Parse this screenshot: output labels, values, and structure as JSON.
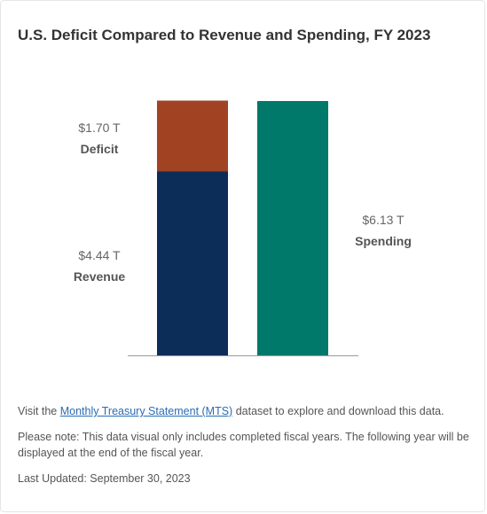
{
  "title": "U.S. Deficit Compared to Revenue and Spending, FY 2023",
  "chart_data": {
    "type": "bar",
    "stacked": true,
    "title": "U.S. Deficit Compared to Revenue and Spending, FY 2023",
    "unit": "T",
    "categories": [
      "",
      ""
    ],
    "series": [
      {
        "name": "Revenue",
        "values": [
          4.44,
          0
        ],
        "color": "#0c2d57",
        "display": "$4.44 T"
      },
      {
        "name": "Deficit",
        "values": [
          1.7,
          0
        ],
        "color": "#a14223",
        "display": "$1.70 T"
      },
      {
        "name": "Spending",
        "values": [
          0,
          6.13
        ],
        "color": "#00796b",
        "display": "$6.13 T"
      }
    ],
    "ylim": [
      0,
      6.13
    ],
    "grid": false,
    "legend": "none"
  },
  "labels": {
    "deficit_value": "$1.70 T",
    "deficit_name": "Deficit",
    "revenue_value": "$4.44 T",
    "revenue_name": "Revenue",
    "spending_value": "$6.13 T",
    "spending_name": "Spending"
  },
  "notes": {
    "visit_prefix": "Visit the ",
    "link_text": "Monthly Treasury Statement (MTS)",
    "visit_suffix": " dataset to explore and download this data.",
    "note": "Please note: This data visual only includes completed fiscal years. The following year will be displayed at the end of the fiscal year.",
    "last_updated": "Last Updated: September 30, 2023"
  }
}
